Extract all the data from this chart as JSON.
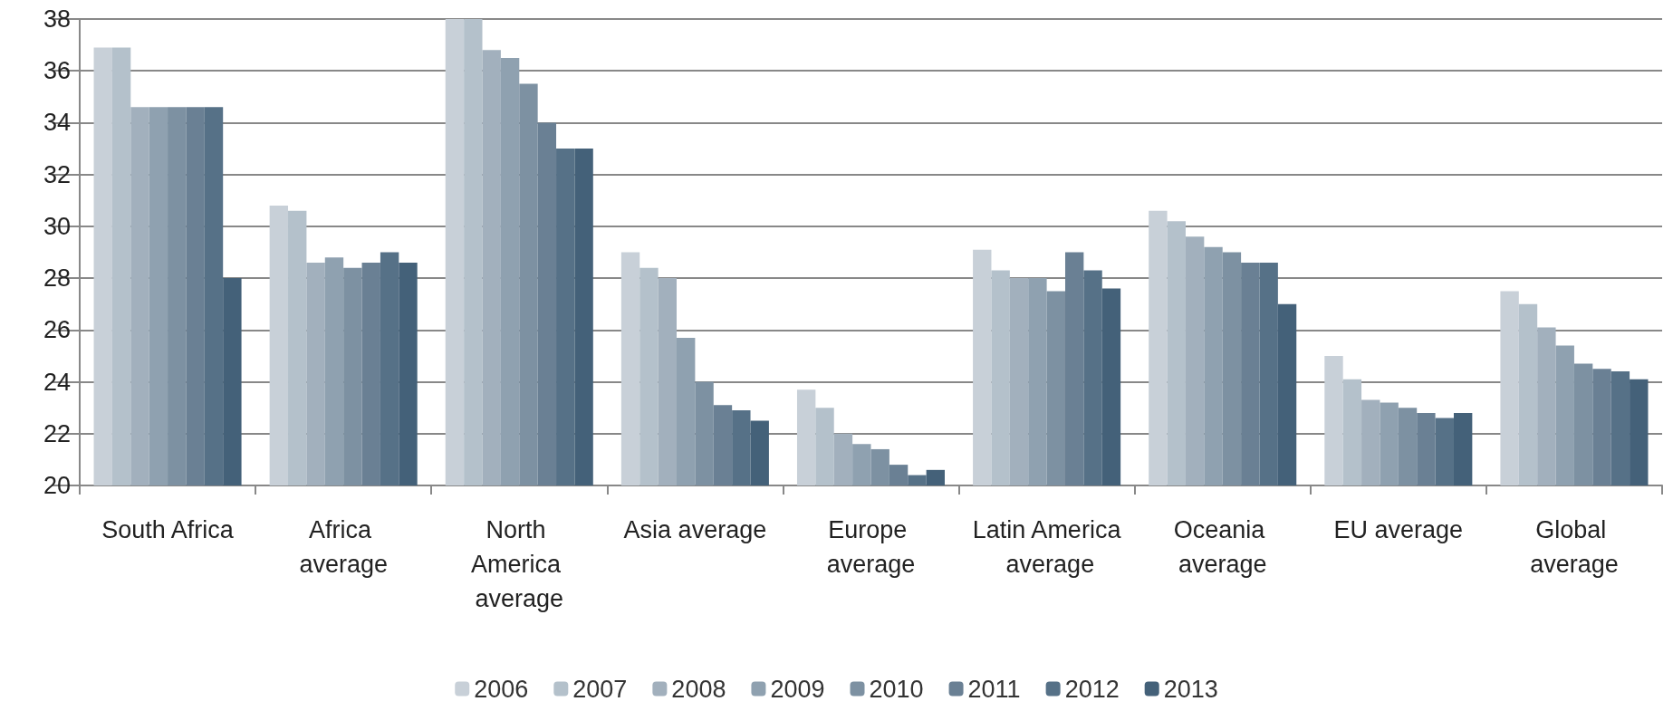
{
  "chart_data": {
    "type": "bar",
    "categories": [
      "South Africa",
      "Africa average",
      "North America average",
      "Asia average",
      "Europe average",
      "Latin America average",
      "Oceania average",
      "EU average",
      "Global average"
    ],
    "series": [
      {
        "name": "2006",
        "color": "#c8d0d8",
        "values": [
          36.9,
          30.8,
          38,
          29,
          23.7,
          29.1,
          30.6,
          25,
          27.5
        ]
      },
      {
        "name": "2007",
        "color": "#b4c1cb",
        "values": [
          36.9,
          30.6,
          38,
          28.4,
          23,
          28.3,
          30.2,
          24.1,
          27
        ]
      },
      {
        "name": "2008",
        "color": "#a2b0bd",
        "values": [
          34.6,
          28.6,
          36.8,
          28,
          22,
          28,
          29.6,
          23.3,
          26.1
        ]
      },
      {
        "name": "2009",
        "color": "#8fa1b0",
        "values": [
          34.6,
          28.8,
          36.5,
          25.7,
          21.6,
          28,
          29.2,
          23.2,
          25.4
        ]
      },
      {
        "name": "2010",
        "color": "#7d91a2",
        "values": [
          34.6,
          28.4,
          35.5,
          24,
          21.4,
          27.5,
          29,
          23,
          24.7
        ]
      },
      {
        "name": "2011",
        "color": "#6a8094",
        "values": [
          34.6,
          28.6,
          34,
          23.1,
          20.8,
          29,
          28.6,
          22.8,
          24.5
        ]
      },
      {
        "name": "2012",
        "color": "#567187",
        "values": [
          34.6,
          29,
          33,
          22.9,
          20.4,
          28.3,
          28.6,
          22.6,
          24.4
        ]
      },
      {
        "name": "2013",
        "color": "#446179",
        "values": [
          28,
          28.6,
          33,
          22.5,
          20.6,
          27.6,
          27,
          22.8,
          24.1
        ]
      }
    ],
    "ylim": [
      20,
      38
    ],
    "yticks": [
      20,
      22,
      24,
      26,
      28,
      30,
      32,
      34,
      36,
      38
    ],
    "grid": "y",
    "legend": "bottom"
  }
}
